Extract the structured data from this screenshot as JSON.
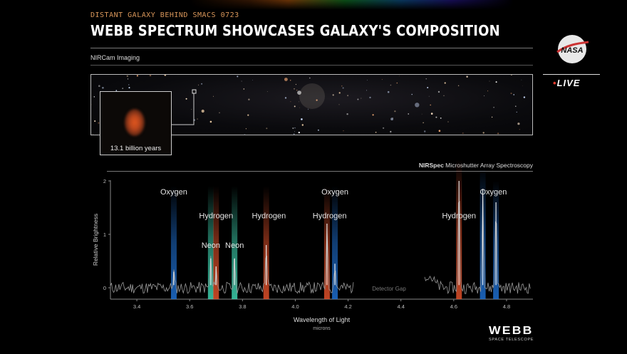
{
  "header": {
    "subtitle": "DISTANT GALAXY BEHIND SMACS 0723",
    "title": "WEBB SPECTRUM SHOWCASES GALAXY'S COMPOSITION"
  },
  "imaging": {
    "label": "NIRCam Imaging",
    "inset_caption": "13.1 billion years"
  },
  "branding": {
    "nasa_logo": "NASA",
    "live_label": "LIVE",
    "webb_title": "WEBB",
    "webb_subtitle": "SPACE TELESCOPE"
  },
  "spectroscopy": {
    "label_bold": "NIRSpec",
    "label_rest": " Microshutter Array Spectroscopy"
  },
  "chart_data": {
    "type": "line",
    "xlabel": "Wavelength of Light",
    "xunit": "microns",
    "ylabel": "Relative Brightness",
    "xlim": [
      3.3,
      4.9
    ],
    "ylim": [
      -0.2,
      2.0
    ],
    "xticks": [
      3.4,
      3.6,
      3.8,
      4.0,
      4.2,
      4.4,
      4.6,
      4.8
    ],
    "yticks": [
      0,
      1,
      2
    ],
    "gap_label": "Detector Gap",
    "gap_range": [
      4.22,
      4.49
    ],
    "lines": [
      {
        "element": "Oxygen",
        "x": 3.54,
        "peak": 0.3,
        "color": "#1e6fd0"
      },
      {
        "element": "Neon",
        "x": 3.68,
        "peak": 0.55,
        "color": "#3ed3b0"
      },
      {
        "element": "Hydrogen",
        "x": 3.7,
        "peak": 0.4,
        "color": "#e0502a"
      },
      {
        "element": "Neon",
        "x": 3.77,
        "peak": 0.55,
        "color": "#3ed3b0"
      },
      {
        "element": "Hydrogen",
        "x": 3.89,
        "peak": 0.8,
        "color": "#e0502a"
      },
      {
        "element": "Hydrogen",
        "x": 4.12,
        "peak": 1.2,
        "color": "#e0502a"
      },
      {
        "element": "Oxygen",
        "x": 4.15,
        "peak": 0.45,
        "color": "#1e6fd0"
      },
      {
        "element": "Hydrogen",
        "x": 4.62,
        "peak": 2.0,
        "color": "#e0502a"
      },
      {
        "element": "Oxygen",
        "x": 4.71,
        "peak": 1.85,
        "color": "#1e6fd0"
      },
      {
        "element": "Oxygen",
        "x": 4.76,
        "peak": 1.6,
        "color": "#1e6fd0"
      }
    ],
    "annotations": [
      {
        "text": "Oxygen",
        "x": 3.54,
        "y": 1.75
      },
      {
        "text": "Hydrogen",
        "x": 3.7,
        "y": 1.3
      },
      {
        "text": "Hydrogen",
        "x": 3.9,
        "y": 1.3
      },
      {
        "text": "Hydrogen",
        "x": 4.13,
        "y": 1.3
      },
      {
        "text": "Neon",
        "x": 3.68,
        "y": 0.75
      },
      {
        "text": "Neon",
        "x": 3.77,
        "y": 0.75
      },
      {
        "text": "Oxygen",
        "x": 4.15,
        "y": 1.75
      },
      {
        "text": "Hydrogen",
        "x": 4.62,
        "y": 1.3
      },
      {
        "text": "Oxygen",
        "x": 4.75,
        "y": 1.75
      }
    ]
  }
}
